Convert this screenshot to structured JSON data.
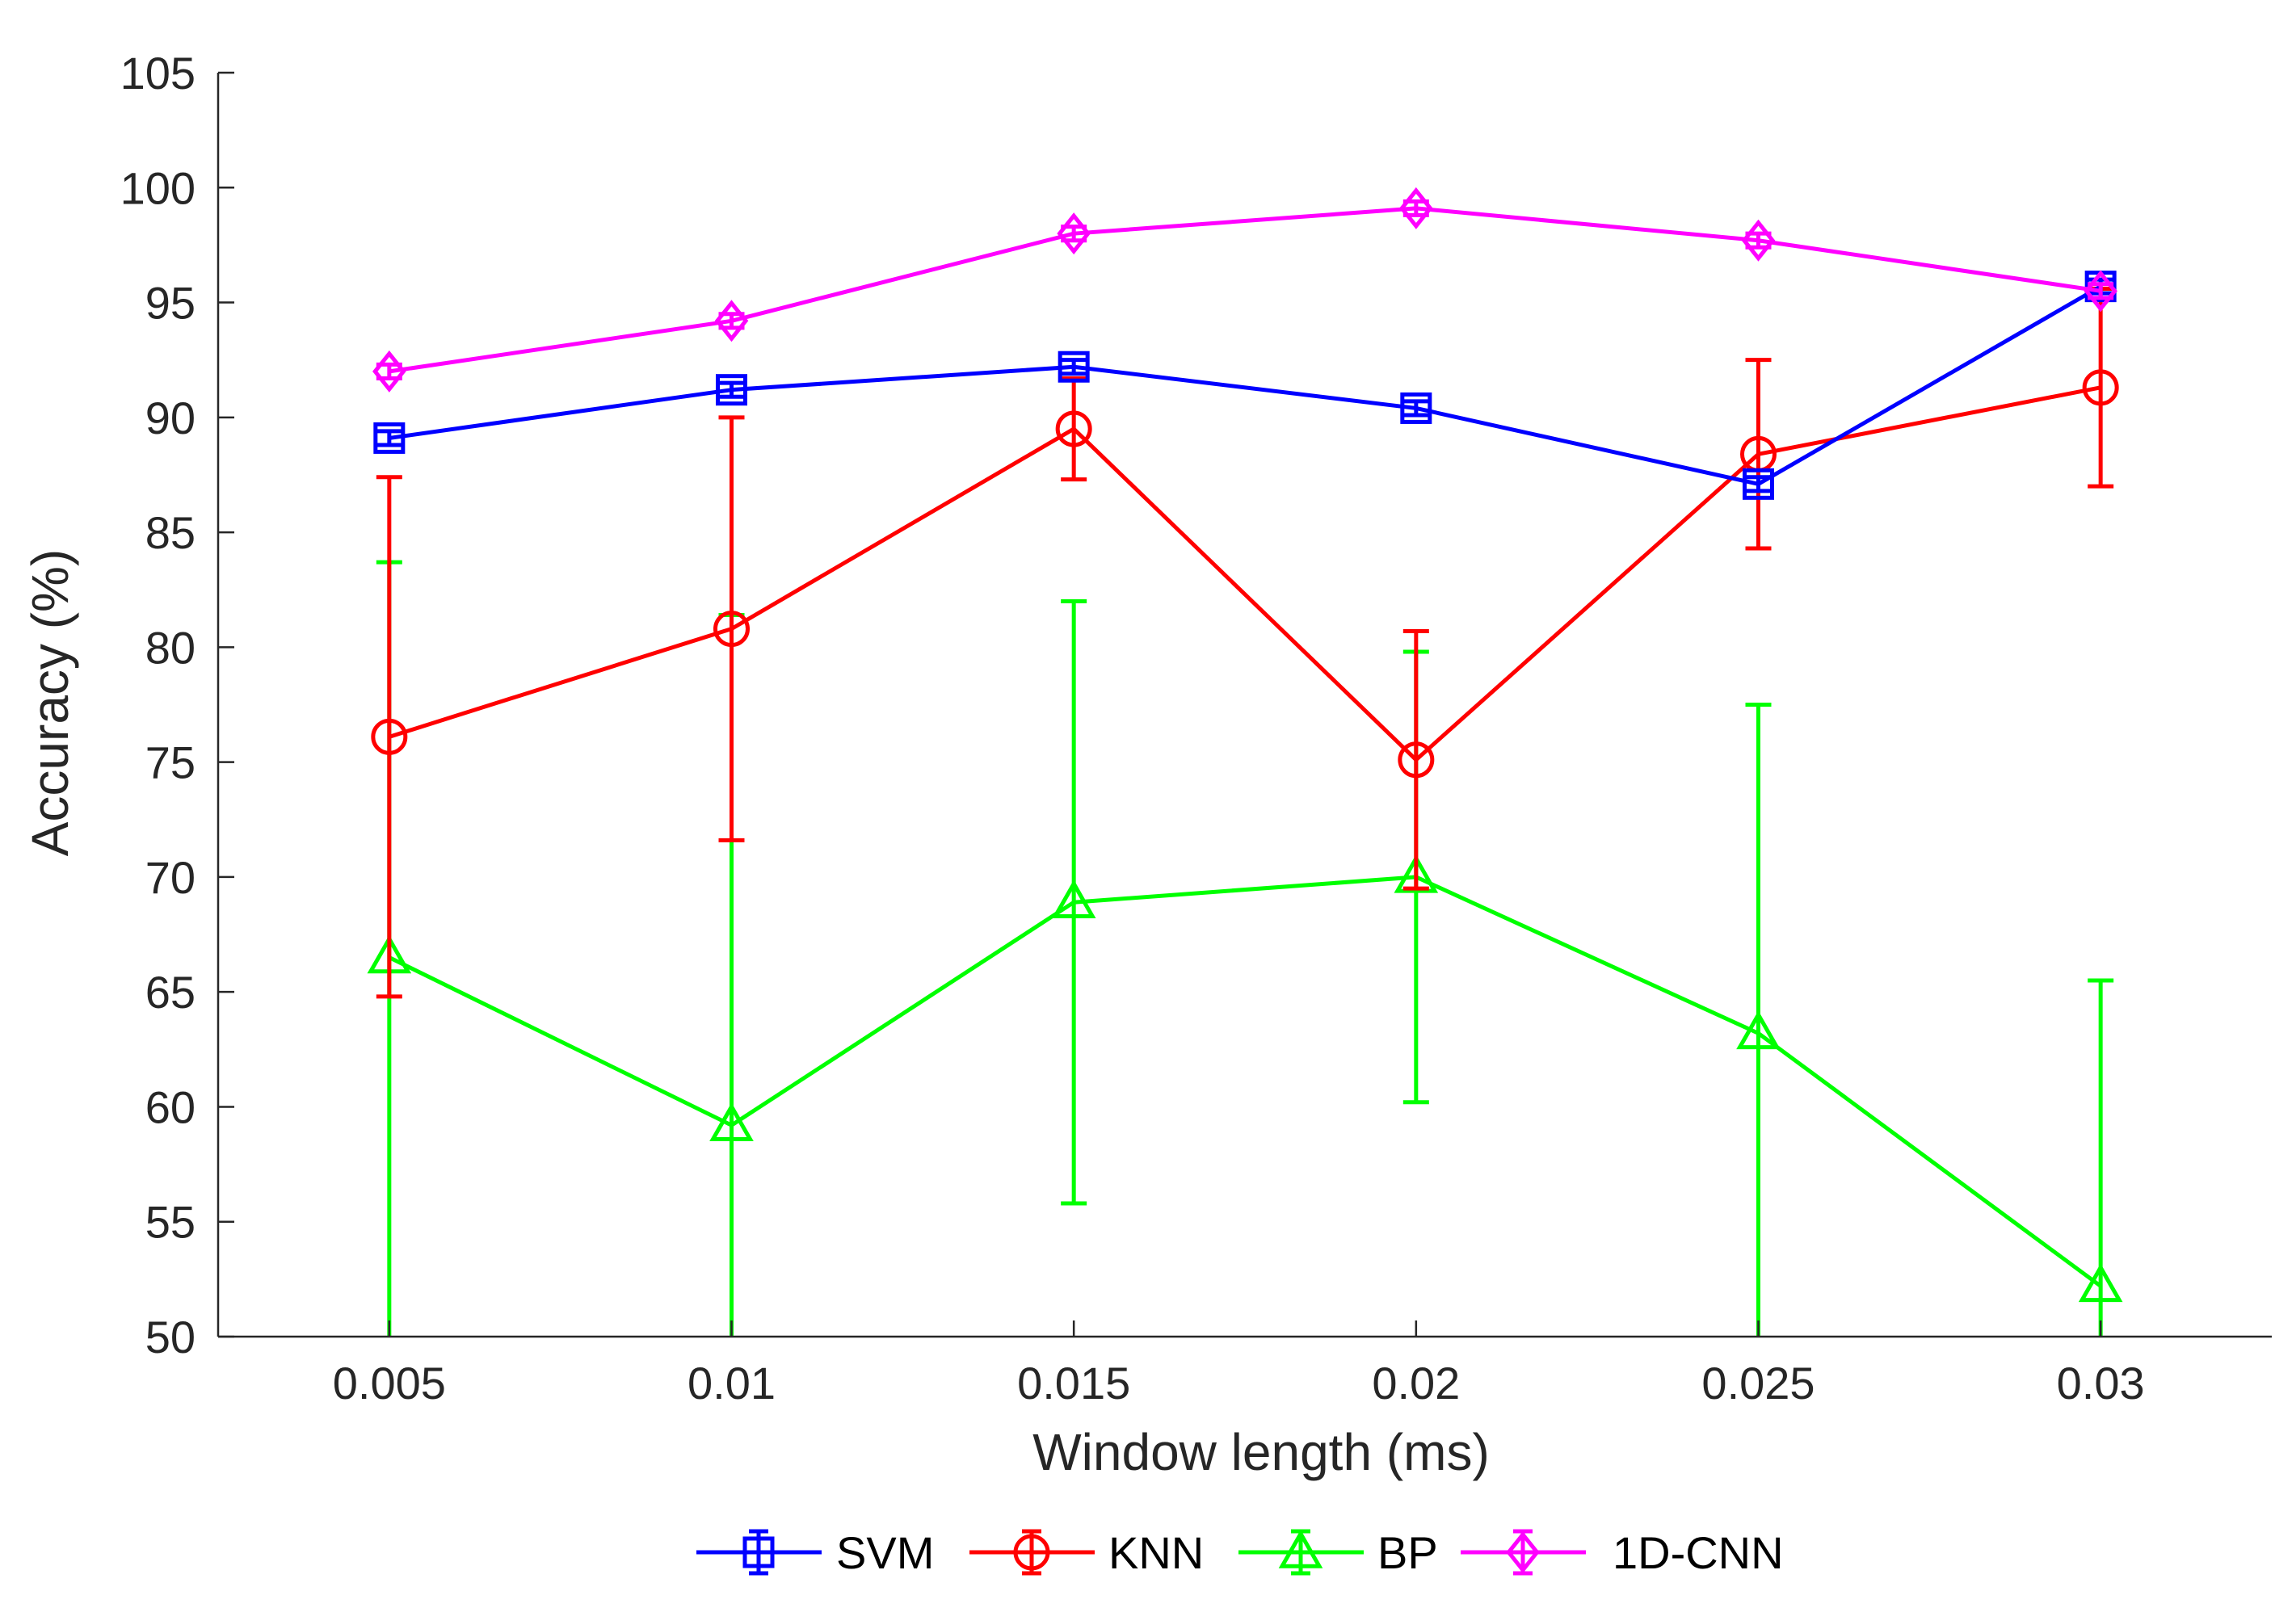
{
  "chart_data": {
    "type": "line",
    "title": "",
    "xlabel": "Window length (ms)",
    "ylabel": "Accuracy (%)",
    "x": [
      0.005,
      0.01,
      0.015,
      0.02,
      0.025,
      0.03
    ],
    "x_tick_labels": [
      "0.005",
      "0.01",
      "0.015",
      "0.02",
      "0.025",
      "0.03"
    ],
    "xlim": [
      0.0025,
      0.0325
    ],
    "ylim": [
      50,
      105
    ],
    "y_ticks": [
      50,
      55,
      60,
      65,
      70,
      75,
      80,
      85,
      90,
      95,
      100,
      105
    ],
    "y_tick_labels": [
      "50",
      "55",
      "60",
      "65",
      "70",
      "75",
      "80",
      "85",
      "90",
      "95",
      "100",
      "105"
    ],
    "grid": false,
    "legend_position": "bottom-center",
    "series": [
      {
        "name": "SVM",
        "color": "#0000ff",
        "marker": "square",
        "values": [
          89.1,
          91.2,
          92.2,
          90.4,
          87.1,
          95.7
        ],
        "err_low": [
          0.3,
          0.3,
          0.3,
          0.3,
          0.3,
          0.3
        ],
        "err_high": [
          0.3,
          0.3,
          0.3,
          0.3,
          0.3,
          0.3
        ]
      },
      {
        "name": "KNN",
        "color": "#ff0000",
        "marker": "circle",
        "values": [
          76.1,
          80.8,
          89.5,
          75.1,
          88.4,
          91.3
        ],
        "err_low": [
          11.3,
          9.2,
          2.2,
          5.6,
          4.1,
          4.3
        ],
        "err_high": [
          11.3,
          9.2,
          2.2,
          5.6,
          4.1,
          4.3
        ]
      },
      {
        "name": "BP",
        "color": "#00ff00",
        "marker": "triangle",
        "values": [
          66.5,
          59.2,
          68.9,
          70.0,
          63.2,
          52.2
        ],
        "err_low": [
          17.2,
          22.2,
          13.1,
          9.8,
          14.3,
          13.3
        ],
        "err_high": [
          17.2,
          22.2,
          13.1,
          9.8,
          14.3,
          13.3
        ]
      },
      {
        "name": "1D-CNN",
        "color": "#ff00ff",
        "marker": "diamond",
        "values": [
          92.0,
          94.2,
          98.0,
          99.1,
          97.7,
          95.5
        ],
        "err_low": [
          0.3,
          0.3,
          0.3,
          0.3,
          0.3,
          0.3
        ],
        "err_high": [
          0.3,
          0.3,
          0.3,
          0.3,
          0.3,
          0.3
        ]
      }
    ]
  },
  "colors": {
    "axis": "#262626",
    "background": "#ffffff"
  }
}
